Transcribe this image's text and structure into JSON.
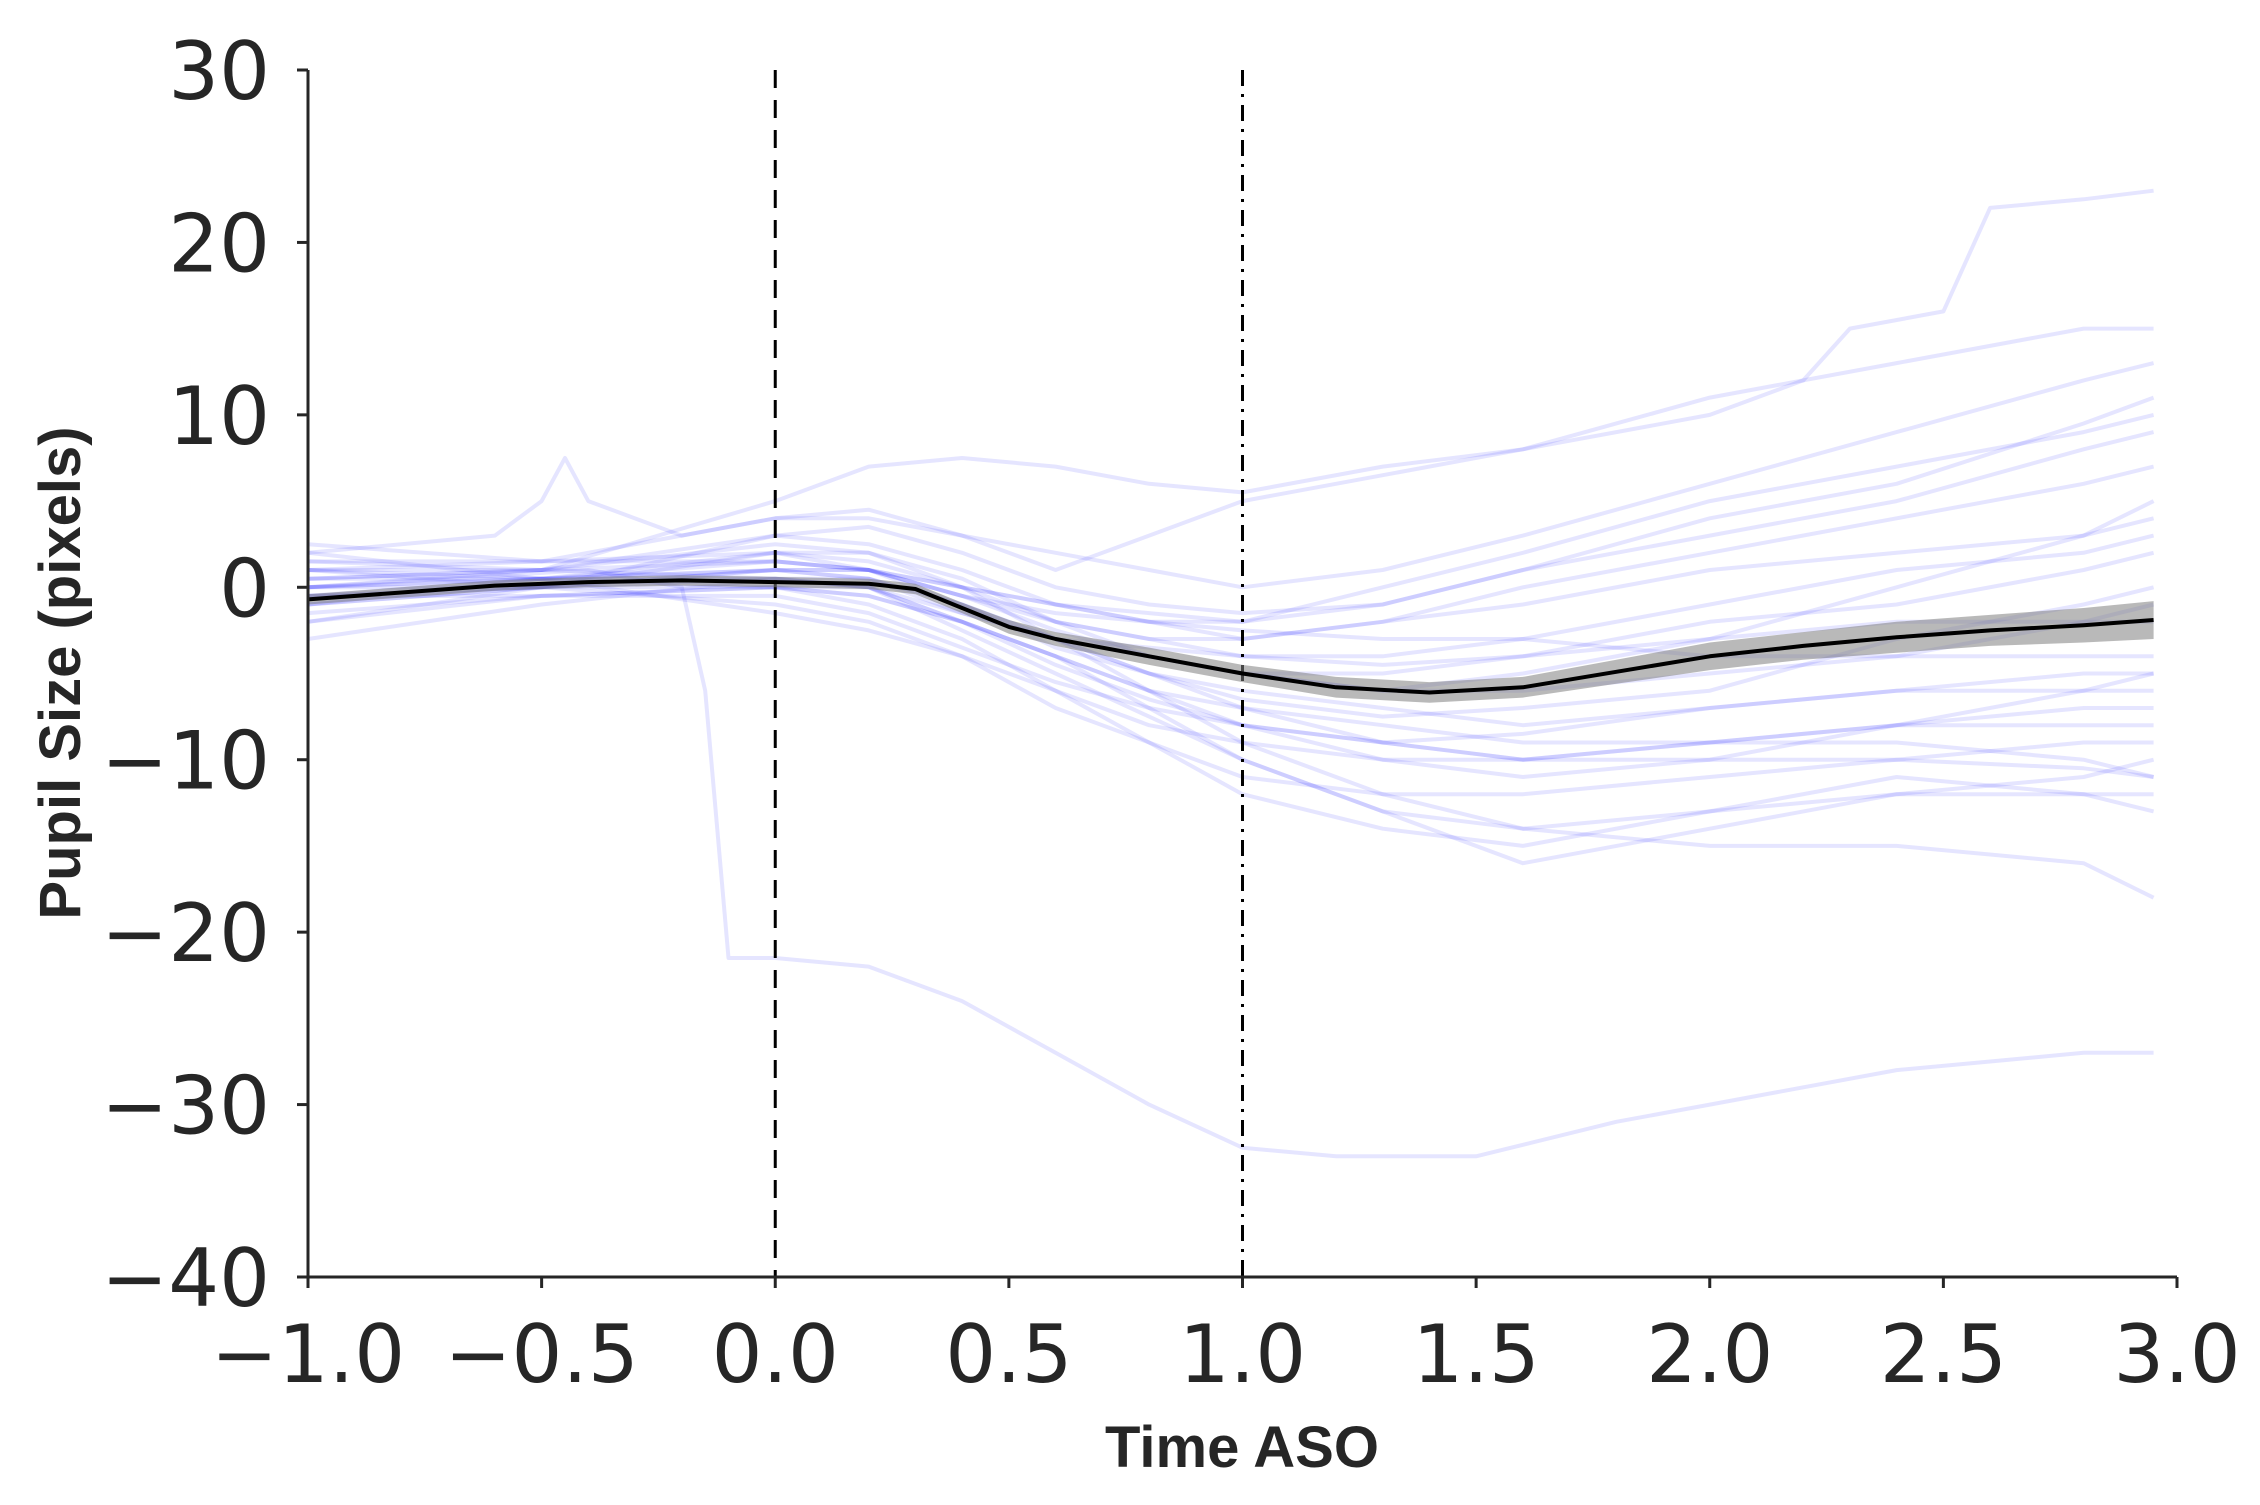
{
  "chart_data": {
    "type": "line",
    "title": "",
    "xlabel": "Time ASO",
    "ylabel": "Pupil Size (pixels)",
    "xlim": [
      -1.0,
      3.0
    ],
    "ylim": [
      -40,
      30
    ],
    "x_ticks": [
      -1.0,
      -0.5,
      0.0,
      0.5,
      1.0,
      1.5,
      2.0,
      2.5,
      3.0
    ],
    "x_tick_labels": [
      "−1.0",
      "−0.5",
      "0.0",
      "0.5",
      "1.0",
      "1.5",
      "2.0",
      "2.5",
      "3.0"
    ],
    "y_ticks": [
      30,
      20,
      10,
      0,
      -10,
      -20,
      -30,
      -40
    ],
    "y_tick_labels": [
      "30",
      "20",
      "10",
      "0",
      "−10",
      "−20",
      "−30",
      "−40"
    ],
    "grid": false,
    "colors": {
      "trials": "#0000ff",
      "mean": "#000000",
      "ci_band": "#808080",
      "axis": "#262626"
    },
    "reference_lines": [
      {
        "x": 0.0,
        "style": "dashed"
      },
      {
        "x": 1.0,
        "style": "dashdot"
      }
    ],
    "mean_series": {
      "x": [
        -1.0,
        -0.8,
        -0.6,
        -0.4,
        -0.2,
        0.0,
        0.2,
        0.3,
        0.4,
        0.5,
        0.6,
        0.8,
        1.0,
        1.2,
        1.4,
        1.6,
        1.8,
        2.0,
        2.2,
        2.4,
        2.6,
        2.8,
        2.95
      ],
      "y": [
        -0.7,
        -0.3,
        0.1,
        0.3,
        0.4,
        0.3,
        0.2,
        -0.1,
        -1.2,
        -2.3,
        -3.0,
        -4.0,
        -5.0,
        -5.8,
        -6.1,
        -5.8,
        -4.9,
        -4.0,
        -3.4,
        -2.9,
        -2.5,
        -2.2,
        -1.9
      ],
      "ci_halfwidth": [
        0.3,
        0.3,
        0.3,
        0.3,
        0.3,
        0.3,
        0.3,
        0.3,
        0.3,
        0.4,
        0.4,
        0.5,
        0.5,
        0.6,
        0.6,
        0.6,
        0.7,
        0.8,
        0.8,
        0.9,
        0.9,
        1.0,
        1.1
      ]
    },
    "trial_series": [
      {
        "x": [
          -1.0,
          -0.6,
          -0.5,
          -0.45,
          -0.4,
          -0.2,
          0.0,
          0.2,
          0.4,
          0.6,
          0.8,
          1.0,
          1.2,
          1.6,
          2.0,
          2.2,
          2.3,
          2.5,
          2.6,
          2.8,
          2.95
        ],
        "y": [
          2.0,
          3.0,
          5.0,
          7.5,
          5.0,
          3.0,
          4.0,
          4.5,
          3.0,
          1.0,
          3.0,
          5.0,
          6.0,
          8.0,
          10.0,
          12.0,
          15.0,
          16.0,
          22.0,
          22.5,
          23.0
        ]
      },
      {
        "x": [
          -1.0,
          -0.4,
          -0.2,
          -0.15,
          -0.1,
          0.0,
          0.2,
          0.4,
          0.6,
          0.8,
          1.0,
          1.2,
          1.5,
          1.8,
          2.0,
          2.4,
          2.6,
          2.8,
          2.95
        ],
        "y": [
          0.0,
          1.0,
          0.0,
          -6.0,
          -21.5,
          -21.5,
          -22.0,
          -24.0,
          -27.0,
          -30.0,
          -32.5,
          -33.0,
          -33.0,
          -31.0,
          -30.0,
          -28.0,
          -27.5,
          -27.0,
          -27.0
        ]
      },
      {
        "x": [
          -1.0,
          -0.5,
          0.0,
          0.2,
          0.4,
          0.6,
          0.8,
          1.0,
          1.3,
          1.6,
          2.0,
          2.4,
          2.8,
          2.95
        ],
        "y": [
          1.0,
          1.0,
          5.0,
          7.0,
          7.5,
          7.0,
          6.0,
          5.5,
          7.0,
          8.0,
          11.0,
          13.0,
          15.0,
          15.0
        ]
      },
      {
        "x": [
          -1.0,
          -0.5,
          0.0,
          0.2,
          0.4,
          0.6,
          0.8,
          1.0,
          1.3,
          1.6,
          2.0,
          2.4,
          2.8,
          2.95
        ],
        "y": [
          -0.5,
          0.5,
          2.0,
          1.0,
          0.0,
          -3.0,
          -6.0,
          -9.0,
          -12.0,
          -14.0,
          -15.0,
          -15.0,
          -16.0,
          -18.0
        ]
      },
      {
        "x": [
          -1.0,
          -0.5,
          0.0,
          0.2,
          0.4,
          0.6,
          0.8,
          1.0,
          1.3,
          1.6,
          2.0,
          2.4,
          2.8,
          2.95
        ],
        "y": [
          0.5,
          1.0,
          3.0,
          2.5,
          1.0,
          -1.0,
          -2.0,
          -2.0,
          0.0,
          2.0,
          5.0,
          7.0,
          9.0,
          10.0
        ]
      },
      {
        "x": [
          -1.0,
          -0.5,
          0.0,
          0.2,
          0.4,
          0.6,
          0.8,
          1.0,
          1.3,
          1.6,
          2.0,
          2.4,
          2.8,
          2.95
        ],
        "y": [
          -1.0,
          0.0,
          0.5,
          0.0,
          -2.0,
          -4.0,
          -7.0,
          -10.0,
          -13.0,
          -16.0,
          -14.0,
          -12.0,
          -11.0,
          -10.0
        ]
      },
      {
        "x": [
          -1.0,
          -0.5,
          0.0,
          0.2,
          0.4,
          0.6,
          0.8,
          1.0,
          1.3,
          1.6,
          2.0,
          2.4,
          2.8,
          2.95
        ],
        "y": [
          1.5,
          1.5,
          2.0,
          2.0,
          0.5,
          -2.0,
          -4.0,
          -5.0,
          -6.0,
          -5.0,
          -3.0,
          0.0,
          3.0,
          5.0
        ]
      },
      {
        "x": [
          -1.0,
          -0.5,
          0.0,
          0.2,
          0.4,
          0.6,
          0.8,
          1.0,
          1.3,
          1.6,
          2.0,
          2.4,
          2.8,
          2.95
        ],
        "y": [
          -2.0,
          -0.5,
          0.0,
          -1.0,
          -3.0,
          -6.0,
          -9.0,
          -12.0,
          -14.0,
          -15.0,
          -13.0,
          -11.0,
          -12.0,
          -13.0
        ]
      },
      {
        "x": [
          -1.0,
          -0.5,
          0.0,
          0.2,
          0.4,
          0.6,
          0.8,
          1.0,
          1.3,
          1.6,
          2.0,
          2.4,
          2.8,
          2.95
        ],
        "y": [
          0.0,
          0.5,
          1.0,
          0.5,
          -1.0,
          -3.0,
          -5.0,
          -6.0,
          -7.0,
          -8.0,
          -7.0,
          -6.0,
          -5.0,
          -5.0
        ]
      },
      {
        "x": [
          -1.0,
          -0.5,
          0.0,
          0.2,
          0.4,
          0.6,
          0.8,
          1.0,
          1.3,
          1.6,
          2.0,
          2.4,
          2.8,
          2.95
        ],
        "y": [
          2.5,
          1.5,
          4.0,
          4.0,
          3.0,
          2.0,
          1.0,
          0.0,
          1.0,
          3.0,
          6.0,
          9.0,
          12.0,
          13.0
        ]
      },
      {
        "x": [
          -1.0,
          -0.5,
          0.0,
          0.2,
          0.4,
          0.6,
          0.8,
          1.0,
          1.3,
          1.6,
          2.0,
          2.4,
          2.8,
          2.95
        ],
        "y": [
          -0.5,
          0.0,
          1.0,
          1.0,
          -0.5,
          -2.5,
          -4.0,
          -5.0,
          -6.0,
          -6.0,
          -5.0,
          -4.0,
          -2.0,
          -1.0
        ]
      },
      {
        "x": [
          -1.0,
          -0.5,
          0.0,
          0.2,
          0.4,
          0.6,
          0.8,
          1.0,
          1.3,
          1.6,
          2.0,
          2.4,
          2.8,
          2.95
        ],
        "y": [
          1.0,
          0.0,
          -1.0,
          -2.0,
          -4.0,
          -7.0,
          -9.0,
          -11.0,
          -12.0,
          -12.0,
          -11.0,
          -10.0,
          -9.0,
          -9.0
        ]
      },
      {
        "x": [
          -1.0,
          -0.5,
          0.0,
          0.2,
          0.4,
          0.6,
          0.8,
          1.0,
          1.3,
          1.6,
          2.0,
          2.4,
          2.8,
          2.95
        ],
        "y": [
          -3.0,
          -1.0,
          0.5,
          0.5,
          -1.5,
          -3.0,
          -3.5,
          -4.0,
          -4.0,
          -3.0,
          -1.0,
          1.0,
          2.0,
          3.0
        ]
      },
      {
        "x": [
          -1.0,
          -0.5,
          0.0,
          0.2,
          0.4,
          0.6,
          0.8,
          1.0,
          1.3,
          1.6,
          2.0,
          2.4,
          2.8,
          2.95
        ],
        "y": [
          0.5,
          1.0,
          2.5,
          2.0,
          0.0,
          -2.0,
          -3.0,
          -3.0,
          -2.0,
          0.0,
          2.0,
          4.0,
          6.0,
          7.0
        ]
      },
      {
        "x": [
          -1.0,
          -0.5,
          0.0,
          0.2,
          0.4,
          0.6,
          0.8,
          1.0,
          1.3,
          1.6,
          2.0,
          2.4,
          2.8,
          2.95
        ],
        "y": [
          -1.5,
          -0.5,
          -0.5,
          -1.5,
          -3.5,
          -5.5,
          -7.0,
          -8.0,
          -9.0,
          -10.0,
          -9.0,
          -8.0,
          -7.0,
          -7.0
        ]
      },
      {
        "x": [
          -1.0,
          -0.5,
          0.0,
          0.2,
          0.4,
          0.6,
          0.8,
          1.0,
          1.3,
          1.6,
          2.0,
          2.4,
          2.8,
          2.95
        ],
        "y": [
          0.0,
          1.0,
          1.5,
          1.0,
          -0.5,
          -1.5,
          -2.0,
          -2.5,
          -3.0,
          -3.0,
          -4.0,
          -4.0,
          -4.0,
          -4.0
        ]
      },
      {
        "x": [
          -1.0,
          -0.5,
          0.0,
          0.2,
          0.4,
          0.6,
          0.8,
          1.0,
          1.3,
          1.6,
          2.0,
          2.4,
          2.8,
          2.95
        ],
        "y": [
          2.0,
          0.5,
          0.0,
          0.0,
          -2.0,
          -4.0,
          -6.0,
          -8.0,
          -10.0,
          -11.0,
          -10.0,
          -8.0,
          -6.0,
          -5.0
        ]
      },
      {
        "x": [
          -1.0,
          -0.5,
          0.0,
          0.2,
          0.4,
          0.6,
          0.8,
          1.0,
          1.3,
          1.6,
          2.0,
          2.4,
          2.8,
          2.95
        ],
        "y": [
          -0.5,
          0.0,
          2.0,
          1.5,
          0.0,
          -1.0,
          -1.5,
          -2.0,
          -1.0,
          1.0,
          3.0,
          5.0,
          8.0,
          9.0
        ]
      },
      {
        "x": [
          -1.0,
          -0.5,
          0.0,
          0.2,
          0.4,
          0.6,
          0.8,
          1.0,
          1.3,
          1.6,
          2.0,
          2.4,
          2.8,
          2.95
        ],
        "y": [
          1.0,
          0.5,
          0.5,
          0.0,
          -2.5,
          -5.0,
          -7.5,
          -10.0,
          -13.0,
          -14.0,
          -13.0,
          -12.0,
          -12.0,
          -12.0
        ]
      },
      {
        "x": [
          -1.0,
          -0.5,
          0.0,
          0.2,
          0.4,
          0.6,
          0.8,
          1.0,
          1.3,
          1.6,
          2.0,
          2.4,
          2.8,
          2.95
        ],
        "y": [
          -1.0,
          0.5,
          1.0,
          0.5,
          -1.0,
          -3.5,
          -5.0,
          -6.5,
          -7.5,
          -7.0,
          -6.0,
          -3.0,
          -1.0,
          0.0
        ]
      },
      {
        "x": [
          -1.0,
          -0.5,
          0.0,
          0.2,
          0.4,
          0.6,
          0.8,
          1.0,
          1.3,
          1.6,
          2.0,
          2.4,
          2.8,
          2.95
        ],
        "y": [
          0.0,
          0.0,
          3.0,
          3.5,
          2.0,
          0.0,
          -1.0,
          -1.5,
          -1.0,
          1.0,
          4.0,
          6.0,
          9.5,
          11.0
        ]
      },
      {
        "x": [
          -1.0,
          -0.5,
          0.0,
          0.2,
          0.4,
          0.6,
          0.8,
          1.0,
          1.3,
          1.6,
          2.0,
          2.4,
          2.8,
          2.95
        ],
        "y": [
          -2.0,
          0.0,
          0.0,
          -0.5,
          -2.0,
          -4.0,
          -6.0,
          -7.0,
          -8.0,
          -9.0,
          -9.0,
          -8.0,
          -8.0,
          -8.0
        ]
      },
      {
        "x": [
          -1.0,
          -0.5,
          0.0,
          0.2,
          0.4,
          0.6,
          0.8,
          1.0,
          1.3,
          1.6,
          2.0,
          2.4,
          2.8,
          2.95
        ],
        "y": [
          1.5,
          1.0,
          0.5,
          0.0,
          -1.5,
          -3.0,
          -4.0,
          -5.0,
          -5.0,
          -4.0,
          -2.0,
          -1.0,
          1.0,
          2.0
        ]
      },
      {
        "x": [
          -1.0,
          -0.5,
          0.0,
          0.2,
          0.4,
          0.6,
          0.8,
          1.0,
          1.3,
          1.6,
          2.0,
          2.4,
          2.8,
          2.95
        ],
        "y": [
          0.5,
          0.5,
          1.5,
          1.0,
          -1.0,
          -3.0,
          -5.0,
          -7.0,
          -9.0,
          -10.0,
          -9.0,
          -9.0,
          -10.0,
          -11.0
        ]
      },
      {
        "x": [
          -1.0,
          -0.5,
          0.0,
          0.2,
          0.4,
          0.6,
          0.8,
          1.0,
          1.3,
          1.6,
          2.0,
          2.4,
          2.8,
          2.95
        ],
        "y": [
          -1.0,
          0.0,
          1.0,
          1.0,
          0.0,
          -1.0,
          -2.0,
          -3.0,
          -2.0,
          -1.0,
          1.0,
          2.0,
          3.0,
          4.0
        ]
      },
      {
        "x": [
          -1.0,
          -0.5,
          0.0,
          0.2,
          0.4,
          0.6,
          0.8,
          1.0,
          1.3,
          1.6,
          2.0,
          2.4,
          2.8,
          2.95
        ],
        "y": [
          0.0,
          0.5,
          -1.5,
          -2.5,
          -4.0,
          -6.0,
          -8.0,
          -9.0,
          -10.0,
          -10.0,
          -10.0,
          -10.0,
          -10.5,
          -11.0
        ]
      },
      {
        "x": [
          -1.0,
          -0.5,
          0.0,
          0.2,
          0.4,
          0.6,
          0.8,
          1.0,
          1.3,
          1.6,
          2.0,
          2.4,
          2.8,
          2.95
        ],
        "y": [
          1.0,
          1.5,
          1.5,
          1.0,
          -0.5,
          -2.0,
          -3.0,
          -4.0,
          -4.5,
          -4.0,
          -3.0,
          -2.0,
          -2.0,
          -2.0
        ]
      },
      {
        "x": [
          -1.0,
          -0.5,
          0.0,
          0.2,
          0.4,
          0.6,
          0.8,
          1.0,
          1.3,
          1.6,
          2.0,
          2.4,
          2.8,
          2.95
        ],
        "y": [
          -0.5,
          -0.5,
          0.0,
          -0.5,
          -2.0,
          -4.5,
          -6.5,
          -8.0,
          -9.0,
          -8.5,
          -7.0,
          -6.0,
          -6.0,
          -6.0
        ]
      }
    ]
  }
}
